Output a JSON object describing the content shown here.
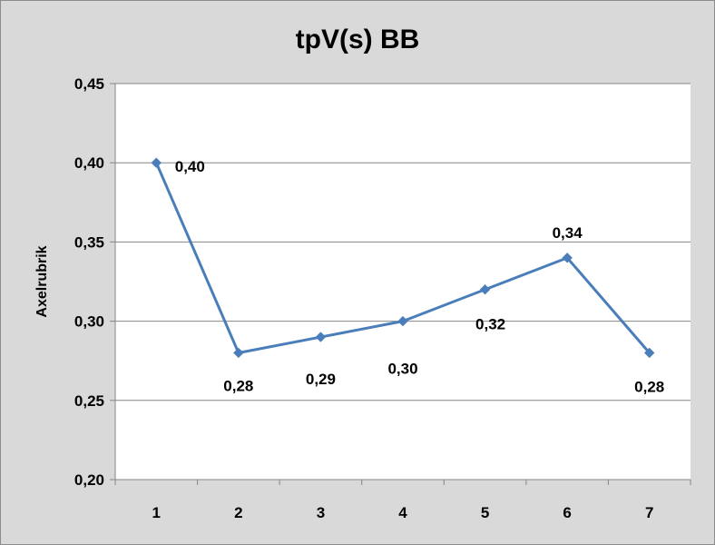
{
  "chart_data": {
    "type": "line",
    "title": "tpV(s) BB",
    "xlabel": "",
    "ylabel": "Axelrubrik",
    "categories": [
      "1",
      "2",
      "3",
      "4",
      "5",
      "6",
      "7"
    ],
    "series": [
      {
        "values": [
          0.4,
          0.28,
          0.29,
          0.3,
          0.32,
          0.34,
          0.28
        ],
        "labels": [
          "0,40",
          "0,28",
          "0,29",
          "0,30",
          "0,32",
          "0,34",
          "0,28"
        ],
        "color": "#4a7ebb"
      }
    ],
    "ylim": [
      0.2,
      0.45
    ],
    "yticks": [
      "0,20",
      "0,25",
      "0,30",
      "0,35",
      "0,40",
      "0,45"
    ],
    "grid": true,
    "legend": "none"
  }
}
